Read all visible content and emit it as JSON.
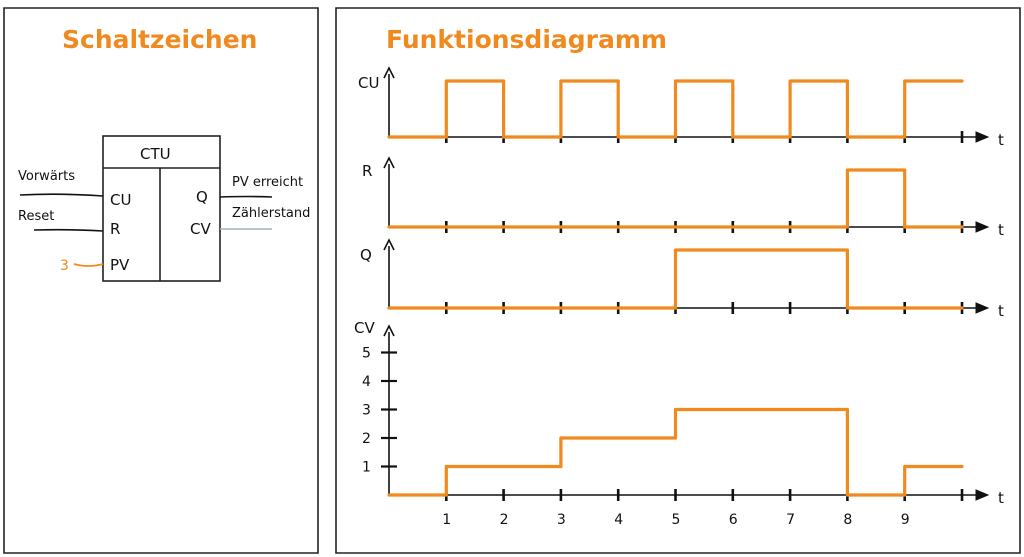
{
  "left_panel": {
    "title": "Schaltzeichen",
    "block": {
      "name": "CTU",
      "inputs": [
        "CU",
        "R",
        "PV"
      ],
      "outputs": [
        "Q",
        "CV"
      ],
      "input_wires": [
        "Vorwärts",
        "Reset"
      ],
      "pv_value": "3",
      "output_wires": [
        "PV erreicht",
        "Zählerstand"
      ]
    }
  },
  "right_panel": {
    "title": "Funktionsdiagramm",
    "time_label": "t",
    "x_ticks": [
      "1",
      "2",
      "3",
      "4",
      "5",
      "6",
      "7",
      "8",
      "9"
    ]
  },
  "colors": {
    "signal": "#f08a1e",
    "ink": "#111111",
    "frame": "#222222",
    "cv_wire": "#9fb4b8"
  },
  "chart_data": [
    {
      "type": "line",
      "name": "CU",
      "ylabel": "CU",
      "xlabel": "t",
      "x": [
        0,
        1,
        1,
        2,
        2,
        3,
        3,
        4,
        4,
        5,
        5,
        6,
        6,
        7,
        7,
        8,
        8,
        9,
        9,
        10
      ],
      "y": [
        0,
        0,
        1,
        1,
        0,
        0,
        1,
        1,
        0,
        0,
        1,
        1,
        0,
        0,
        1,
        1,
        0,
        0,
        1,
        1
      ]
    },
    {
      "type": "line",
      "name": "R",
      "ylabel": "R",
      "xlabel": "t",
      "x": [
        0,
        8,
        8,
        9,
        9,
        10
      ],
      "y": [
        0,
        0,
        1,
        1,
        0,
        0
      ]
    },
    {
      "type": "line",
      "name": "Q",
      "ylabel": "Q",
      "xlabel": "t",
      "x": [
        0,
        5,
        5,
        8,
        8,
        10
      ],
      "y": [
        0,
        0,
        1,
        1,
        0,
        0
      ]
    },
    {
      "type": "line",
      "name": "CV",
      "ylabel": "CV",
      "xlabel": "t",
      "y_ticks": [
        "1",
        "2",
        "3",
        "4",
        "5"
      ],
      "ylim": [
        0,
        5
      ],
      "x": [
        0,
        1,
        1,
        3,
        3,
        5,
        5,
        8,
        8,
        9,
        9,
        10
      ],
      "y": [
        0,
        0,
        1,
        1,
        2,
        2,
        3,
        3,
        0,
        0,
        1,
        1
      ]
    }
  ]
}
